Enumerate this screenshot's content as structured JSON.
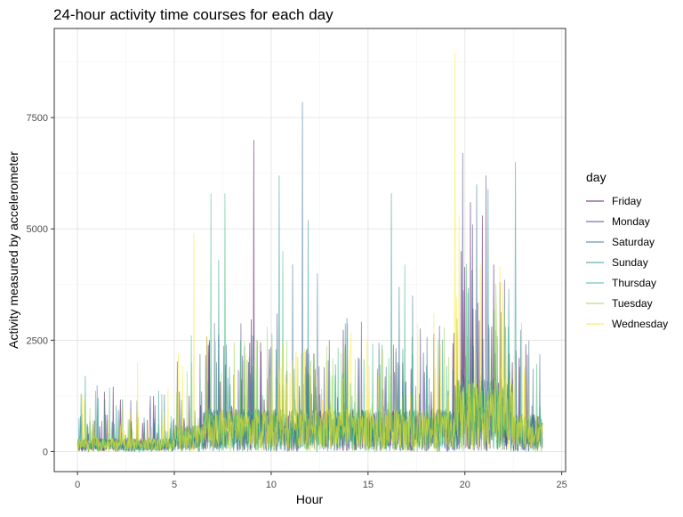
{
  "chart_data": {
    "type": "line",
    "title": "24-hour activity time courses for each day",
    "xlabel": "Hour",
    "ylabel": "Activity measured by accelerometer",
    "xlim": [
      -1.2,
      25.2
    ],
    "ylim": [
      -450,
      9500
    ],
    "x_ticks": [
      0,
      5,
      10,
      15,
      20,
      25
    ],
    "y_ticks": [
      0,
      2500,
      5000,
      7500
    ],
    "grid": true,
    "legend": {
      "title": "day",
      "position": "right"
    },
    "series": [
      {
        "name": "Friday",
        "color": "#440154",
        "peaks": [
          [
            6.8,
            2500
          ],
          [
            9.1,
            7000
          ],
          [
            9.9,
            2300
          ],
          [
            12.2,
            2200
          ],
          [
            16.8,
            2000
          ],
          [
            19.8,
            4500
          ],
          [
            20.3,
            5600
          ],
          [
            20.9,
            5300
          ],
          [
            21.5,
            4200
          ]
        ]
      },
      {
        "name": "Monday",
        "color": "#443983",
        "peaks": [
          [
            10.3,
            3100
          ],
          [
            13.0,
            2500
          ],
          [
            16.3,
            2400
          ],
          [
            19.9,
            6700
          ],
          [
            20.4,
            5100
          ],
          [
            21.1,
            6200
          ],
          [
            21.8,
            3800
          ],
          [
            22.3,
            2200
          ]
        ]
      },
      {
        "name": "Saturday",
        "color": "#31688E",
        "peaks": [
          [
            7.7,
            2400
          ],
          [
            11.1,
            4200
          ],
          [
            11.6,
            7850
          ],
          [
            12.4,
            4000
          ],
          [
            13.9,
            3000
          ],
          [
            16.6,
            3700
          ],
          [
            17.3,
            3500
          ],
          [
            20.6,
            6000
          ]
        ]
      },
      {
        "name": "Sunday",
        "color": "#21918C",
        "peaks": [
          [
            0.2,
            1300
          ],
          [
            0.4,
            1700
          ],
          [
            7.3,
            4300
          ],
          [
            10.4,
            6200
          ],
          [
            11.9,
            5200
          ],
          [
            16.2,
            5800
          ],
          [
            21.2,
            5900
          ],
          [
            22.6,
            6500
          ]
        ]
      },
      {
        "name": "Thursday",
        "color": "#35B779",
        "peaks": [
          [
            6.9,
            5800
          ],
          [
            7.6,
            5800
          ],
          [
            8.4,
            2500
          ],
          [
            9.3,
            2500
          ],
          [
            10.6,
            4500
          ],
          [
            16.9,
            4200
          ],
          [
            22.1,
            2800
          ]
        ]
      },
      {
        "name": "Tuesday",
        "color": "#90D743",
        "peaks": [
          [
            5.9,
            2000
          ],
          [
            9.8,
            2800
          ],
          [
            13.2,
            2100
          ],
          [
            15.6,
            2300
          ],
          [
            18.6,
            2500
          ],
          [
            20.1,
            2200
          ],
          [
            23.1,
            1900
          ]
        ]
      },
      {
        "name": "Wednesday",
        "color": "#FDE725",
        "peaks": [
          [
            3.1,
            2000
          ],
          [
            6.0,
            4900
          ],
          [
            14.1,
            2200
          ],
          [
            18.4,
            3100
          ],
          [
            19.5,
            8950
          ],
          [
            19.7,
            5300
          ],
          [
            20.8,
            4200
          ]
        ]
      }
    ]
  }
}
